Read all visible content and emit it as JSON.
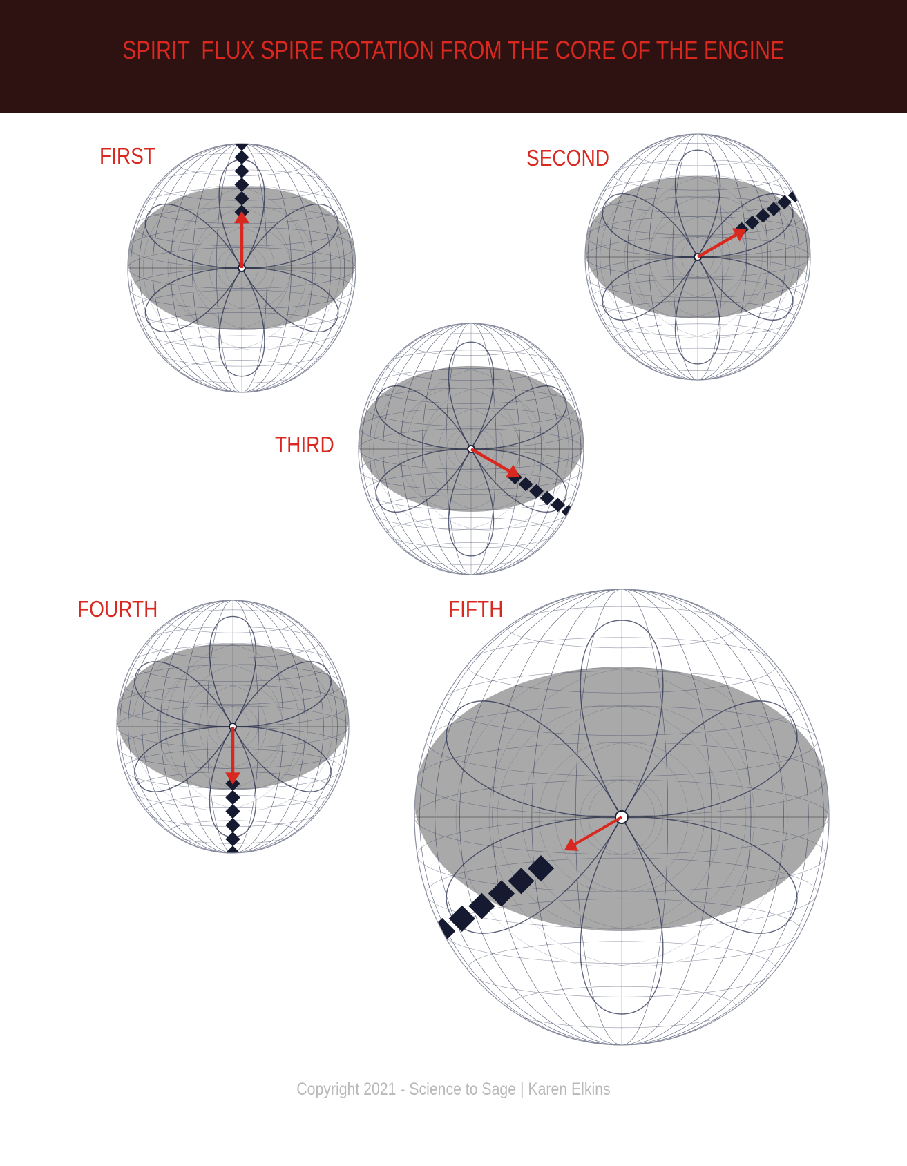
{
  "header": {
    "title": "SPIRIT  FLUX SPIRE ROTATION FROM THE CORE OF THE ENGINE"
  },
  "stages": [
    {
      "id": "first",
      "label": "FIRST",
      "arrow_angle_deg": -90
    },
    {
      "id": "second",
      "label": "SECOND",
      "arrow_angle_deg": -30
    },
    {
      "id": "third",
      "label": "THIRD",
      "arrow_angle_deg": 30
    },
    {
      "id": "fourth",
      "label": "FOURTH",
      "arrow_angle_deg": 90
    },
    {
      "id": "fifth",
      "label": "FIFTH",
      "arrow_angle_deg": 150
    }
  ],
  "footer": {
    "copyright": "Copyright 2021 - Science to Sage | Karen Elkins"
  },
  "colors": {
    "header_bg": "#2d1211",
    "accent_red": "#d8281f",
    "equator_band": "#9a9a9a",
    "grid_line": "#3c4460",
    "footer_text": "#b9b9b9"
  }
}
